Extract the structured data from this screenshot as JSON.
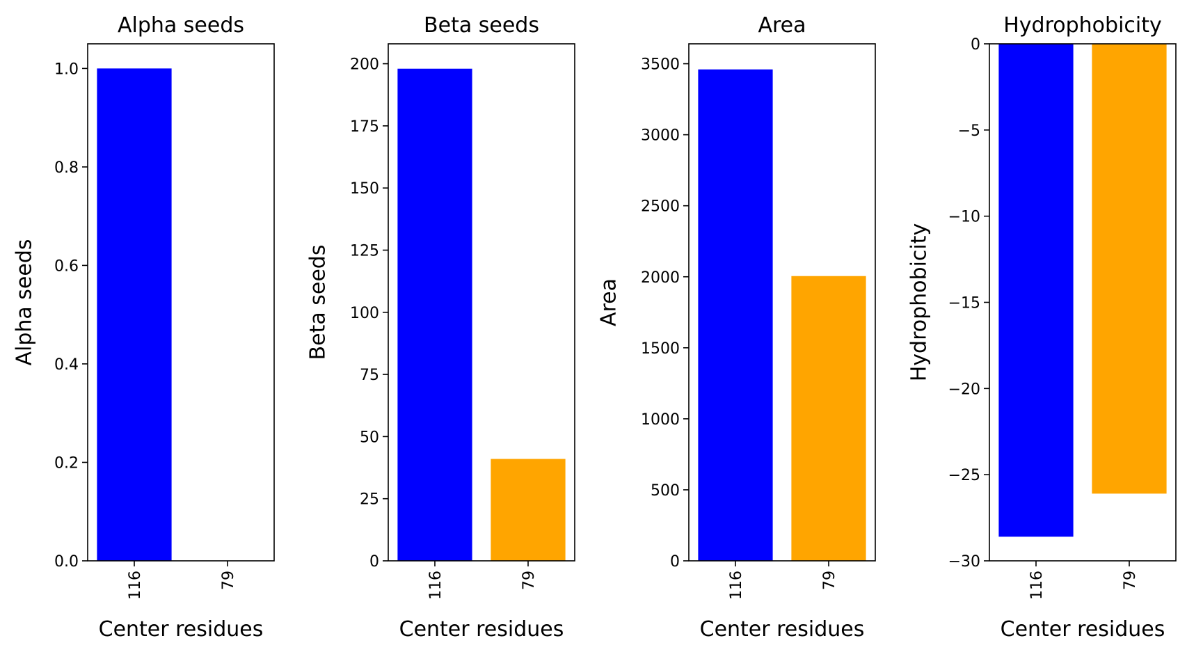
{
  "chart_data": [
    {
      "type": "bar",
      "title": "Alpha seeds",
      "xlabel": "Center residues",
      "ylabel": "Alpha seeds",
      "categories": [
        "116",
        "79"
      ],
      "values": [
        1.0,
        0.0
      ],
      "colors": [
        "#0000ff",
        "#ffa500"
      ],
      "ylim": [
        0,
        1.05
      ],
      "yticks": [
        0.0,
        0.2,
        0.4,
        0.6,
        0.8,
        1.0
      ],
      "ytick_labels": [
        "0.0",
        "0.2",
        "0.4",
        "0.6",
        "0.8",
        "1.0"
      ],
      "grid": false
    },
    {
      "type": "bar",
      "title": "Beta seeds",
      "xlabel": "Center residues",
      "ylabel": "Beta seeds",
      "categories": [
        "116",
        "79"
      ],
      "values": [
        198,
        41
      ],
      "colors": [
        "#0000ff",
        "#ffa500"
      ],
      "ylim": [
        0,
        208
      ],
      "yticks": [
        0,
        25,
        50,
        75,
        100,
        125,
        150,
        175,
        200
      ],
      "ytick_labels": [
        "0",
        "25",
        "50",
        "75",
        "100",
        "125",
        "150",
        "175",
        "200"
      ],
      "grid": false
    },
    {
      "type": "bar",
      "title": "Area",
      "xlabel": "Center residues",
      "ylabel": "Area",
      "categories": [
        "116",
        "79"
      ],
      "values": [
        3460,
        2005
      ],
      "colors": [
        "#0000ff",
        "#ffa500"
      ],
      "ylim": [
        0,
        3640
      ],
      "yticks": [
        0,
        500,
        1000,
        1500,
        2000,
        2500,
        3000,
        3500
      ],
      "ytick_labels": [
        "0",
        "500",
        "1000",
        "1500",
        "2000",
        "2500",
        "3000",
        "3500"
      ],
      "grid": false
    },
    {
      "type": "bar",
      "title": "Hydrophobicity",
      "xlabel": "Center residues",
      "ylabel": "Hydrophobicity",
      "categories": [
        "116",
        "79"
      ],
      "values": [
        -28.6,
        -26.1
      ],
      "colors": [
        "#0000ff",
        "#ffa500"
      ],
      "ylim": [
        -30,
        0
      ],
      "yticks": [
        -30,
        -25,
        -20,
        -15,
        -10,
        -5,
        0
      ],
      "ytick_labels": [
        "−30",
        "−25",
        "−20",
        "−15",
        "−10",
        "−5",
        "0"
      ],
      "grid": false
    }
  ]
}
